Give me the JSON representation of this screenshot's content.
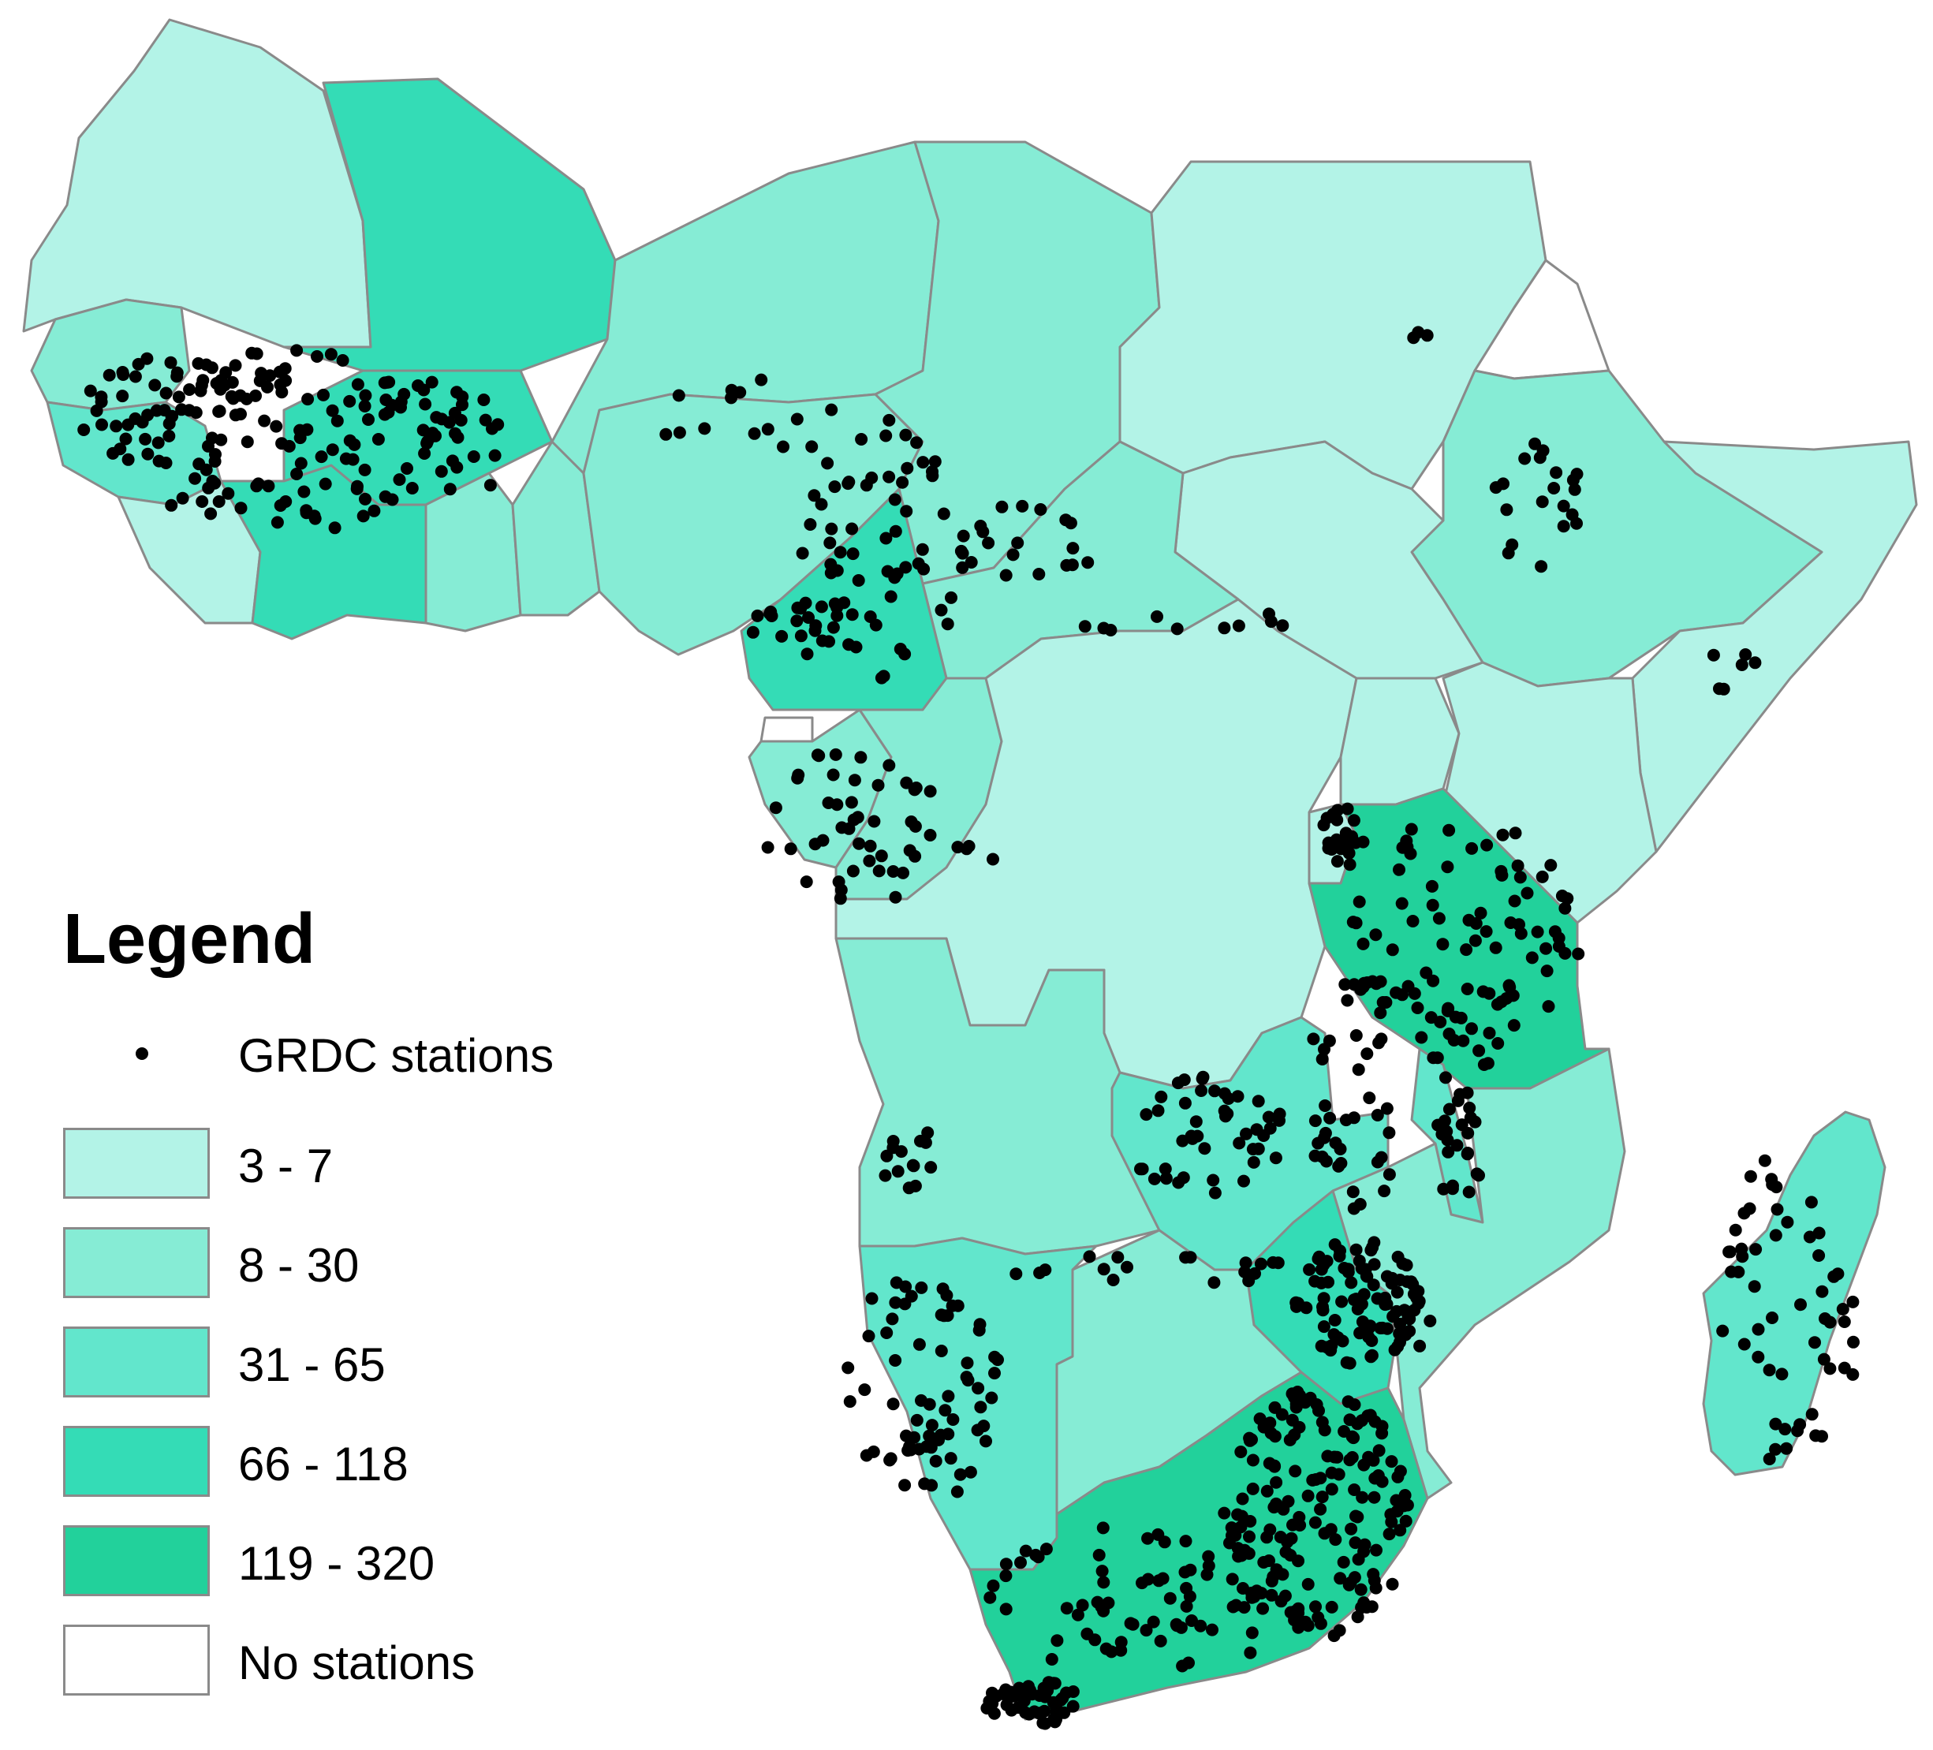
{
  "colors": {
    "class_3_7": "#b3f3e7",
    "class_8_30": "#86ecd5",
    "class_31_65": "#62e6cc",
    "class_66_118": "#34dcb6",
    "class_119_320": "#22d19b",
    "no_stations": "#ffffff",
    "border": "#8a8a8a",
    "station": "#000000"
  },
  "legend": {
    "title": "Legend",
    "items": [
      {
        "label": "GRDC stations",
        "kind": "dot",
        "color": "#000000"
      },
      {
        "label": "3 - 7",
        "kind": "swatch",
        "color": "#b3f3e7"
      },
      {
        "label": "8 - 30",
        "kind": "swatch",
        "color": "#86ecd5"
      },
      {
        "label": "31 - 65",
        "kind": "swatch",
        "color": "#62e6cc"
      },
      {
        "label": "66 - 118",
        "kind": "swatch",
        "color": "#34dcb6"
      },
      {
        "label": "119 - 320",
        "kind": "swatch",
        "color": "#22d19b"
      },
      {
        "label": "No stations",
        "kind": "swatch",
        "color": "#ffffff"
      }
    ]
  }
}
